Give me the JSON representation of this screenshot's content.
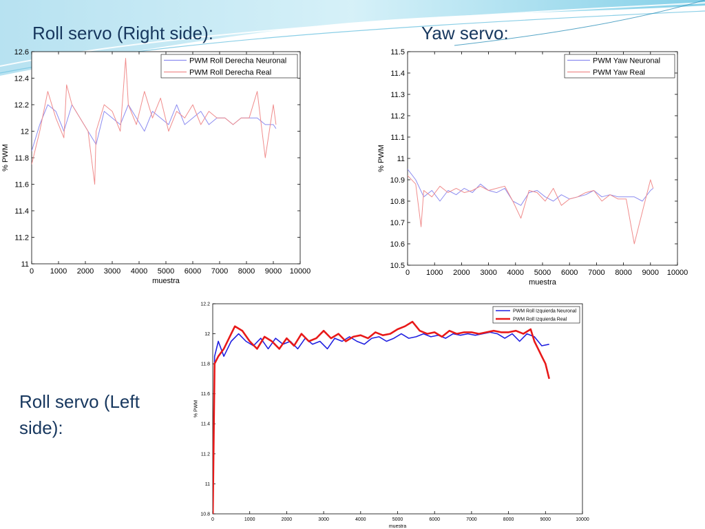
{
  "slide": {
    "title_roll_right": "Roll  servo (Right side):",
    "title_yaw": "Yaw servo:",
    "title_roll_left": "Roll  servo (Left side):"
  },
  "colors": {
    "heading": "#17375e",
    "neuronal_light": "#8c8cf0",
    "real_light": "#f08c8c",
    "neuronal": "#1f1fe0",
    "real": "#e81919"
  },
  "chart_data": [
    {
      "id": "roll-right",
      "type": "line",
      "xlabel": "muestra",
      "ylabel": "% PWM",
      "xlim": [
        0,
        10000
      ],
      "ylim": [
        11,
        12.6
      ],
      "xticks": [
        "0",
        "1000",
        "2000",
        "3000",
        "4000",
        "5000",
        "6000",
        "7000",
        "8000",
        "9000",
        "10000"
      ],
      "yticks": [
        "11",
        "11.2",
        "11.4",
        "11.6",
        "11.8",
        "12",
        "12.2",
        "12.4",
        "12.6"
      ],
      "legend_position": "top-right",
      "series": [
        {
          "name": "PWM Roll Derecha Neuronal",
          "x": [
            0,
            300,
            600,
            900,
            1200,
            1500,
            1800,
            2100,
            2400,
            2700,
            3000,
            3300,
            3600,
            3900,
            4200,
            4500,
            4800,
            5100,
            5400,
            5700,
            6000,
            6300,
            6600,
            6900,
            7200,
            7500,
            7800,
            8100,
            8400,
            8700,
            9000,
            9100
          ],
          "y": [
            11.85,
            12.05,
            12.2,
            12.15,
            12.0,
            12.2,
            12.1,
            12.0,
            11.9,
            12.15,
            12.1,
            12.05,
            12.2,
            12.1,
            12.0,
            12.15,
            12.1,
            12.05,
            12.2,
            12.05,
            12.1,
            12.15,
            12.05,
            12.1,
            12.1,
            12.05,
            12.1,
            12.1,
            12.1,
            12.05,
            12.05,
            12.02
          ]
        },
        {
          "name": "PWM Roll Derecha Real",
          "x": [
            0,
            300,
            600,
            900,
            1200,
            1300,
            1500,
            1800,
            2100,
            2350,
            2400,
            2700,
            3000,
            3300,
            3500,
            3600,
            3900,
            4200,
            4500,
            4800,
            5100,
            5400,
            5700,
            6000,
            6300,
            6600,
            6900,
            7200,
            7500,
            7800,
            8100,
            8400,
            8700,
            9000,
            9100
          ],
          "y": [
            11.75,
            12.0,
            12.3,
            12.1,
            11.95,
            12.35,
            12.2,
            12.1,
            12.0,
            11.6,
            12.0,
            12.2,
            12.15,
            12.0,
            12.55,
            12.2,
            12.05,
            12.3,
            12.1,
            12.25,
            12.0,
            12.15,
            12.1,
            12.2,
            12.05,
            12.15,
            12.1,
            12.1,
            12.05,
            12.1,
            12.1,
            12.3,
            11.8,
            12.2,
            12.05
          ]
        }
      ]
    },
    {
      "id": "yaw",
      "type": "line",
      "xlabel": "muestra",
      "ylabel": "% PWM",
      "xlim": [
        0,
        10000
      ],
      "ylim": [
        10.5,
        11.5
      ],
      "xticks": [
        "0",
        "1000",
        "2000",
        "3000",
        "4000",
        "5000",
        "6000",
        "7000",
        "8000",
        "9000",
        "10000"
      ],
      "yticks": [
        "10.5",
        "10.6",
        "10.7",
        "10.8",
        "10.9",
        "11",
        "11.1",
        "11.2",
        "11.3",
        "11.4",
        "11.5"
      ],
      "legend_position": "top-right",
      "series": [
        {
          "name": "PWM Yaw Neuronal",
          "x": [
            0,
            300,
            600,
            900,
            1200,
            1500,
            1800,
            2100,
            2400,
            2700,
            3000,
            3300,
            3600,
            3900,
            4200,
            4500,
            4800,
            5100,
            5400,
            5700,
            6000,
            6300,
            6600,
            6900,
            7200,
            7500,
            7800,
            8100,
            8400,
            8700,
            9000,
            9100
          ],
          "y": [
            10.95,
            10.9,
            10.82,
            10.85,
            10.8,
            10.85,
            10.83,
            10.86,
            10.84,
            10.88,
            10.85,
            10.84,
            10.86,
            10.8,
            10.78,
            10.84,
            10.85,
            10.82,
            10.8,
            10.83,
            10.81,
            10.82,
            10.83,
            10.85,
            10.82,
            10.83,
            10.82,
            10.82,
            10.82,
            10.8,
            10.85,
            10.86
          ]
        },
        {
          "name": "PWM Yaw Real",
          "x": [
            0,
            300,
            500,
            600,
            900,
            1200,
            1500,
            1800,
            2100,
            2400,
            2700,
            3000,
            3300,
            3600,
            3900,
            4200,
            4500,
            4800,
            5100,
            5400,
            5700,
            6000,
            6300,
            6600,
            6900,
            7200,
            7500,
            7800,
            8100,
            8400,
            8700,
            9000,
            9100
          ],
          "y": [
            10.92,
            10.88,
            10.68,
            10.85,
            10.82,
            10.87,
            10.84,
            10.86,
            10.84,
            10.85,
            10.87,
            10.85,
            10.86,
            10.87,
            10.8,
            10.72,
            10.85,
            10.84,
            10.8,
            10.86,
            10.78,
            10.81,
            10.82,
            10.84,
            10.85,
            10.8,
            10.83,
            10.81,
            10.81,
            10.6,
            10.75,
            10.9,
            10.86
          ]
        }
      ]
    },
    {
      "id": "roll-left",
      "type": "line",
      "xlabel": "muestra",
      "ylabel": "% PWM",
      "xlim": [
        0,
        10000
      ],
      "ylim": [
        10.8,
        12.2
      ],
      "xticks": [
        "0",
        "1000",
        "2000",
        "3000",
        "4000",
        "5000",
        "6000",
        "7000",
        "8000",
        "9000",
        "10000"
      ],
      "yticks": [
        "10.8",
        "11",
        "11.2",
        "11.4",
        "11.6",
        "11.8",
        "12",
        "12.2"
      ],
      "legend_position": "top-right",
      "series": [
        {
          "name": "PWM Roll Izquierda Neuronal",
          "x": [
            0,
            50,
            150,
            300,
            500,
            700,
            900,
            1100,
            1300,
            1500,
            1700,
            1900,
            2100,
            2300,
            2500,
            2700,
            2900,
            3100,
            3300,
            3500,
            3700,
            3900,
            4100,
            4300,
            4500,
            4700,
            4900,
            5100,
            5300,
            5500,
            5700,
            5900,
            6100,
            6300,
            6500,
            6700,
            6900,
            7100,
            7300,
            7500,
            7700,
            7900,
            8100,
            8300,
            8500,
            8700,
            8900,
            9100
          ],
          "y": [
            10.8,
            11.85,
            11.95,
            11.85,
            11.95,
            12.0,
            11.95,
            11.92,
            11.97,
            11.9,
            11.97,
            11.93,
            11.95,
            11.9,
            11.97,
            11.93,
            11.95,
            11.9,
            11.97,
            11.95,
            11.98,
            11.95,
            11.93,
            11.97,
            11.98,
            11.95,
            11.97,
            12.0,
            11.97,
            11.98,
            12.0,
            11.98,
            11.99,
            11.97,
            12.0,
            11.99,
            12.0,
            11.99,
            12.0,
            12.01,
            12.0,
            11.97,
            12.0,
            11.95,
            12.0,
            11.98,
            11.92,
            11.93
          ]
        },
        {
          "name": "PWM Roll Izquierda Real",
          "x": [
            0,
            50,
            150,
            300,
            500,
            600,
            800,
            1000,
            1200,
            1400,
            1600,
            1800,
            2000,
            2200,
            2400,
            2600,
            2800,
            3000,
            3200,
            3400,
            3600,
            3800,
            4000,
            4200,
            4400,
            4600,
            4800,
            5000,
            5200,
            5400,
            5600,
            5800,
            6000,
            6200,
            6400,
            6600,
            6800,
            7000,
            7200,
            7400,
            7600,
            7800,
            8000,
            8200,
            8400,
            8600,
            8700,
            8800,
            8900,
            9000,
            9100
          ],
          "y": [
            10.75,
            11.8,
            11.85,
            11.9,
            12.0,
            12.05,
            12.02,
            11.95,
            11.9,
            11.98,
            11.95,
            11.9,
            11.97,
            11.92,
            12.0,
            11.95,
            11.97,
            12.02,
            11.97,
            12.0,
            11.95,
            11.98,
            11.99,
            11.97,
            12.01,
            11.99,
            12.0,
            12.03,
            12.05,
            12.08,
            12.02,
            12.0,
            12.01,
            11.98,
            12.02,
            12.0,
            12.01,
            12.01,
            12.0,
            12.01,
            12.02,
            12.01,
            12.01,
            12.02,
            12.0,
            12.03,
            11.95,
            11.9,
            11.85,
            11.8,
            11.7
          ]
        }
      ]
    }
  ]
}
